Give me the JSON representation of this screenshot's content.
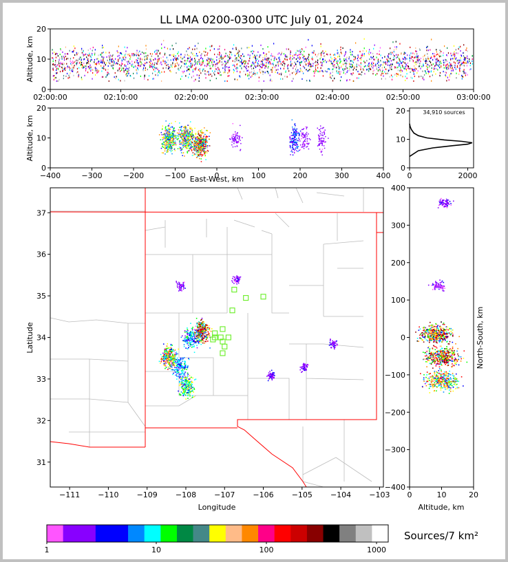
{
  "chart_data": [
    {
      "type": "scatter",
      "panel": "altitude-vs-time",
      "title": "LL LMA 0200-0300 UTC July 01, 2024",
      "ylabel": "Altitude, km",
      "xlabel": "",
      "ylim": [
        0,
        20
      ],
      "y_ticks": [
        "0",
        "10",
        "20"
      ],
      "x_ticks": [
        "02:00:00",
        "02:10:00",
        "02:20:00",
        "02:30:00",
        "02:40:00",
        "02:50:00",
        "03:00:00"
      ],
      "source_band_altitude_km": [
        3,
        18
      ],
      "grid": true
    },
    {
      "type": "scatter",
      "panel": "altitude-vs-east-west",
      "xlabel": "East-West, km",
      "ylabel": "Altitude, km",
      "xlim": [
        -400,
        400
      ],
      "ylim": [
        0,
        20
      ],
      "x_ticks": [
        "−400",
        "−300",
        "−200",
        "−100",
        "0",
        "100",
        "200",
        "300",
        "400"
      ],
      "y_ticks": [
        "0",
        "10",
        "20"
      ],
      "clusters": [
        {
          "x_km": -115,
          "alt_km": 10,
          "weight": 5
        },
        {
          "x_km": -75,
          "alt_km": 10,
          "weight": 5
        },
        {
          "x_km": -40,
          "alt_km": 8,
          "weight": 6
        },
        {
          "x_km": 45,
          "alt_km": 10,
          "weight": 1
        },
        {
          "x_km": 185,
          "alt_km": 10,
          "weight": 2
        },
        {
          "x_km": 210,
          "alt_km": 10,
          "weight": 1
        },
        {
          "x_km": 250,
          "alt_km": 10,
          "weight": 1
        }
      ]
    },
    {
      "type": "line",
      "panel": "altitude-histogram",
      "annotation": "34,910 sources",
      "x_ticks": [
        "0",
        "2000"
      ],
      "y_ticks": [
        "0",
        "10",
        "20"
      ],
      "xlim": [
        0,
        2200
      ],
      "ylim": [
        0,
        21
      ],
      "points": [
        [
          0,
          4
        ],
        [
          300,
          6
        ],
        [
          800,
          7
        ],
        [
          1500,
          7.8
        ],
        [
          2000,
          8.3
        ],
        [
          2150,
          8.8
        ],
        [
          1800,
          9.3
        ],
        [
          1200,
          9.8
        ],
        [
          600,
          10.5
        ],
        [
          300,
          11.3
        ],
        [
          150,
          12.2
        ],
        [
          60,
          13.5
        ],
        [
          20,
          14.5
        ],
        [
          0,
          15.5
        ]
      ]
    },
    {
      "type": "scatter",
      "panel": "plan-view-map",
      "xlabel": "Longitude",
      "ylabel": "Latitude",
      "xlim": [
        -111.5,
        -102.9
      ],
      "ylim": [
        30.4,
        37.6
      ],
      "x_ticks": [
        "−111",
        "−110",
        "−109",
        "−108",
        "−107",
        "−106",
        "−105",
        "−104",
        "−103"
      ],
      "y_ticks": [
        "31",
        "32",
        "33",
        "34",
        "35",
        "36",
        "37"
      ],
      "source_clusters": [
        {
          "lon": -107.6,
          "lat": 34.15,
          "weight": 6
        },
        {
          "lon": -107.9,
          "lat": 34.0,
          "weight": 3
        },
        {
          "lon": -108.45,
          "lat": 33.55,
          "weight": 5
        },
        {
          "lon": -108.15,
          "lat": 33.3,
          "weight": 3
        },
        {
          "lon": -108.0,
          "lat": 32.85,
          "weight": 4
        },
        {
          "lon": -108.15,
          "lat": 35.25,
          "weight": 1
        },
        {
          "lon": -104.95,
          "lat": 33.3,
          "weight": 1
        },
        {
          "lon": -104.2,
          "lat": 33.85,
          "weight": 1
        },
        {
          "lon": -106.7,
          "lat": 35.4,
          "weight": 1
        },
        {
          "lon": -105.8,
          "lat": 33.1,
          "weight": 1
        }
      ],
      "stations": [
        [
          -106.75,
          35.15
        ],
        [
          -106.45,
          34.95
        ],
        [
          -106.0,
          34.98
        ],
        [
          -106.8,
          34.65
        ],
        [
          -107.05,
          34.2
        ],
        [
          -107.25,
          34.1
        ],
        [
          -107.25,
          34.0
        ],
        [
          -107.1,
          34.0
        ],
        [
          -107.3,
          33.95
        ],
        [
          -107.05,
          33.9
        ],
        [
          -106.9,
          34.0
        ],
        [
          -107.0,
          33.78
        ],
        [
          -107.05,
          33.62
        ]
      ]
    },
    {
      "type": "scatter",
      "panel": "north-south-vs-altitude",
      "xlabel": "Altitude, km",
      "ylabel": "North-South, km",
      "xlim": [
        0,
        20
      ],
      "ylim": [
        -400,
        400
      ],
      "x_ticks": [
        "0",
        "10",
        "20"
      ],
      "y_ticks": [
        "−400",
        "−300",
        "−200",
        "−100",
        "0",
        "100",
        "200",
        "300",
        "400"
      ],
      "clusters": [
        {
          "alt_km": 8,
          "ns_km": 10,
          "weight": 6
        },
        {
          "alt_km": 10,
          "ns_km": -50,
          "weight": 6
        },
        {
          "alt_km": 10,
          "ns_km": -115,
          "weight": 5
        },
        {
          "alt_km": 9,
          "ns_km": 140,
          "weight": 1
        },
        {
          "alt_km": 11,
          "ns_km": 360,
          "weight": 1
        }
      ]
    }
  ],
  "colorbar": {
    "label": "Sources/7 km²",
    "tick_labels": [
      "1",
      "10",
      "100",
      "1000"
    ],
    "colors": [
      "#ff55ff",
      "#8800ff",
      "#8800ff",
      "#0000ff",
      "#0000ff",
      "#0088ff",
      "#00ffff",
      "#00ff00",
      "#008844",
      "#448888",
      "#ffff00",
      "#ffbb88",
      "#ff8800",
      "#ff0088",
      "#ff0000",
      "#cc0000",
      "#880000",
      "#000000",
      "#808080",
      "#c0c0c0",
      "#ffffff"
    ]
  }
}
